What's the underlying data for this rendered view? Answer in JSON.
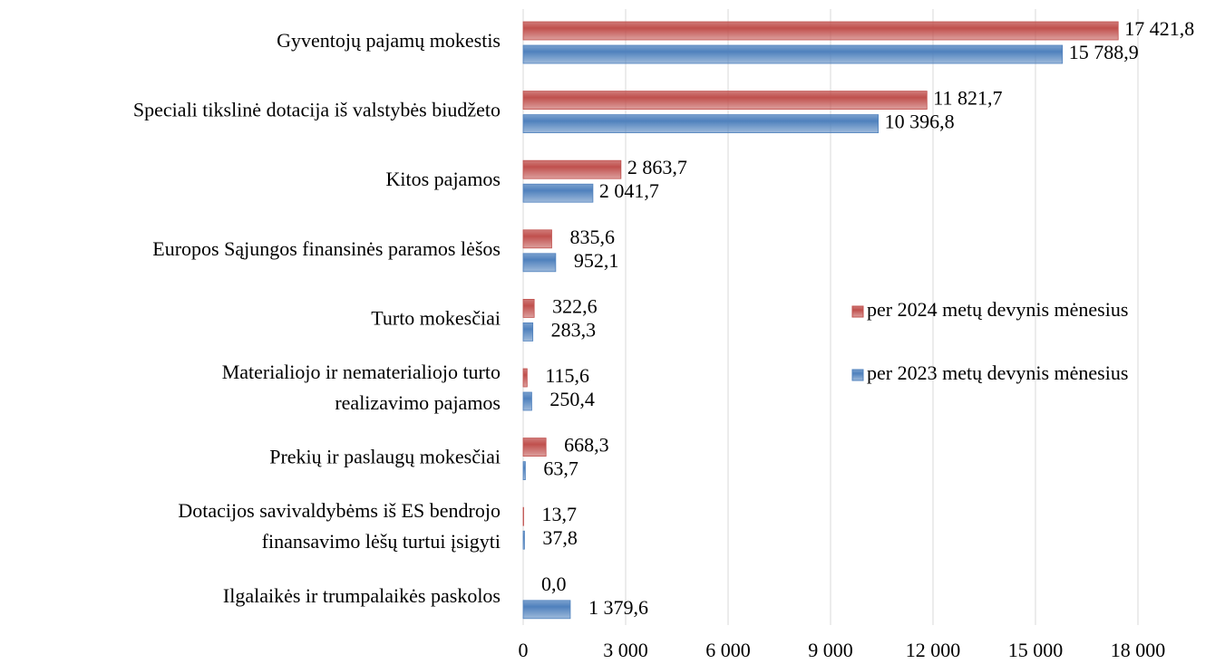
{
  "chart_data": {
    "type": "bar",
    "orientation": "horizontal",
    "categories": [
      "Gyventojų pajamų mokestis",
      "Speciali tikslinė dotacija iš valstybės biudžeto",
      "Kitos pajamos",
      "Europos Sąjungos finansinės paramos lėšos",
      "Turto mokesčiai",
      "Materialiojo ir nematerialiojo turto\nrealizavimo pajamos",
      "Prekių ir paslaugų mokesčiai",
      "Dotacijos savivaldybėms iš ES bendrojo\nfinansavimo lėšų turtui įsigyti",
      "Ilgalaikės ir trumpalaikės paskolos"
    ],
    "series": [
      {
        "name": "per 2024 metų devynis mėnesius",
        "color": "#c0504d",
        "values": [
          17421.8,
          11821.7,
          2863.7,
          835.6,
          322.6,
          115.6,
          668.3,
          13.7,
          0.0
        ],
        "value_labels": [
          "17 421,8",
          "11 821,7",
          "2 863,7",
          "835,6",
          "322,6",
          "115,6",
          "668,3",
          "13,7",
          "0,0"
        ]
      },
      {
        "name": "per 2023 metų devynis mėnesius",
        "color": "#4f81bd",
        "values": [
          15788.9,
          10396.8,
          2041.7,
          952.1,
          283.3,
          250.4,
          63.7,
          37.8,
          1379.6
        ],
        "value_labels": [
          "15 788,9",
          "10 396,8",
          "2 041,7",
          "952,1",
          "283,3",
          "250,4",
          "63,7",
          "37,8",
          "1 379,6"
        ]
      }
    ],
    "xlim": [
      0,
      18000
    ],
    "xticks": [
      0,
      {
        "value": 3000,
        "label": "3 000"
      },
      {
        "value": 6000,
        "label": "6 000"
      },
      {
        "value": 9000,
        "label": "9 000"
      },
      {
        "value": 12000,
        "label": "12 000"
      },
      {
        "value": 15000,
        "label": "15 000"
      },
      {
        "value": 18000,
        "label": "18 000"
      }
    ],
    "grid": true,
    "legend": "right"
  }
}
